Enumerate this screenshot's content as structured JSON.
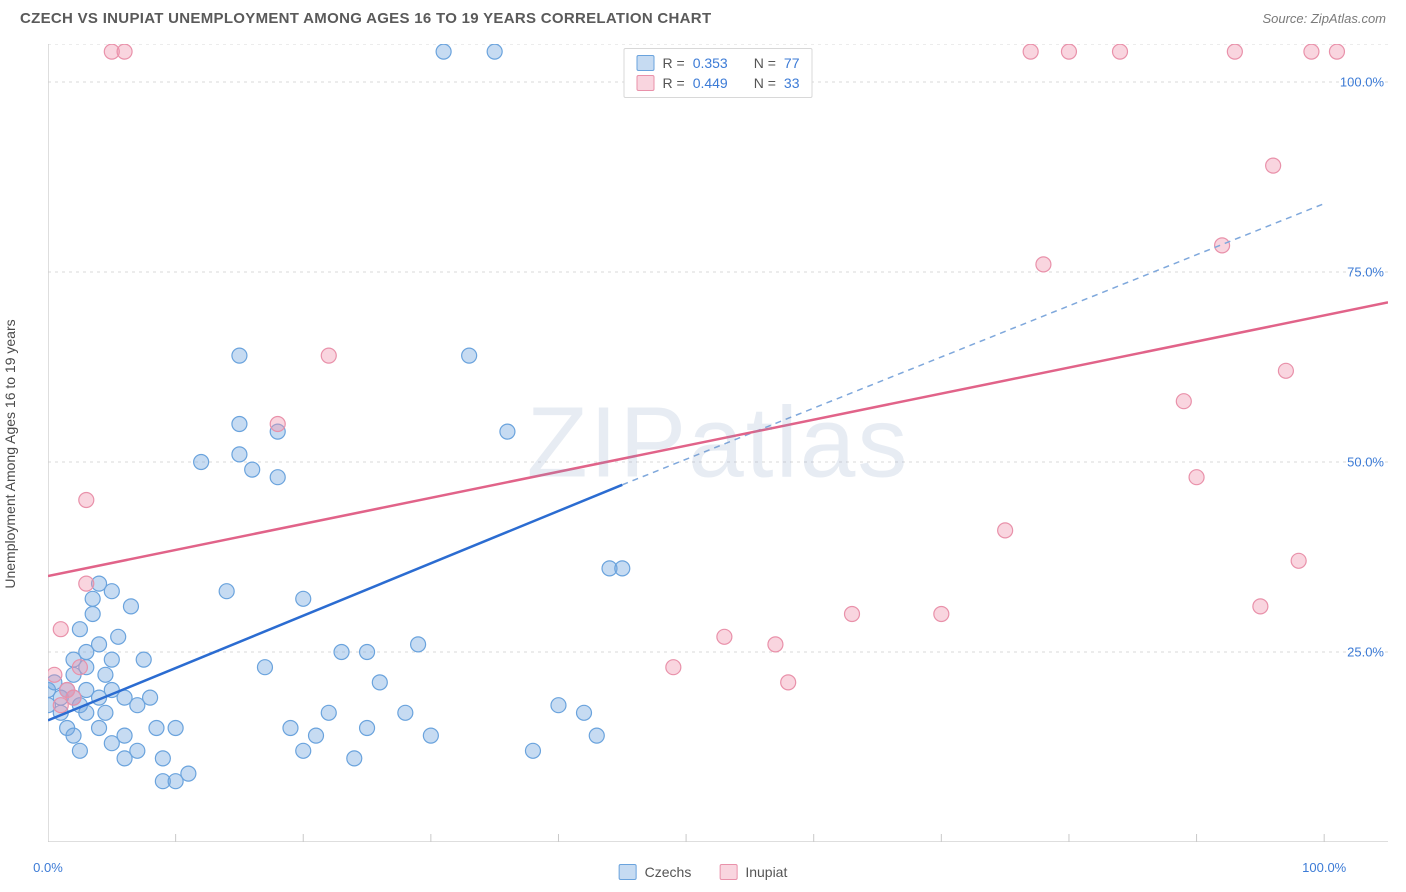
{
  "title": "CZECH VS INUPIAT UNEMPLOYMENT AMONG AGES 16 TO 19 YEARS CORRELATION CHART",
  "source_label": "Source: ZipAtlas.com",
  "yaxis_label": "Unemployment Among Ages 16 to 19 years",
  "watermark": "ZIPatlas",
  "chart": {
    "type": "scatter",
    "xlim": [
      0,
      105
    ],
    "ylim": [
      0,
      105
    ],
    "xticks": [
      0,
      10,
      20,
      30,
      40,
      50,
      60,
      70,
      80,
      90,
      100
    ],
    "xtick_labels_shown": {
      "0": "0.0%",
      "100": "100.0%"
    },
    "yticks": [
      25,
      50,
      75,
      100
    ],
    "ytick_labels": {
      "25": "25.0%",
      "50": "50.0%",
      "75": "75.0%",
      "100": "100.0%"
    },
    "grid_color": "#d9d9d9",
    "axis_color": "#c9c9c9",
    "background": "#ffffff",
    "series": {
      "czechs": {
        "label": "Czechs",
        "color_fill": "rgba(120,170,225,0.42)",
        "color_stroke": "#6aa3dd",
        "marker_r": 7.5,
        "R": "0.353",
        "N": "77",
        "trend": {
          "x1": 0,
          "y1": 16,
          "x2": 45,
          "y2": 47,
          "color": "#2b6cd1",
          "width": 2.5
        },
        "trend_ext": {
          "x1": 45,
          "y1": 47,
          "x2": 100,
          "y2": 84,
          "color": "#7fa8dc",
          "dash": "6,5",
          "width": 1.5
        },
        "points": [
          [
            0,
            18
          ],
          [
            0,
            20
          ],
          [
            0.5,
            21
          ],
          [
            1,
            19
          ],
          [
            1,
            17
          ],
          [
            1.5,
            15
          ],
          [
            1.5,
            20
          ],
          [
            2,
            19
          ],
          [
            2,
            22
          ],
          [
            2,
            24
          ],
          [
            2,
            14
          ],
          [
            2.5,
            12
          ],
          [
            2.5,
            18
          ],
          [
            3,
            20
          ],
          [
            3,
            23
          ],
          [
            3,
            25
          ],
          [
            3,
            17
          ],
          [
            3.5,
            32
          ],
          [
            3.5,
            30
          ],
          [
            4,
            26
          ],
          [
            4,
            19
          ],
          [
            4,
            15
          ],
          [
            4.5,
            17
          ],
          [
            4.5,
            22
          ],
          [
            5,
            24
          ],
          [
            5,
            20
          ],
          [
            5,
            13
          ],
          [
            5,
            33
          ],
          [
            5.5,
            27
          ],
          [
            6,
            19
          ],
          [
            6,
            14
          ],
          [
            6,
            11
          ],
          [
            6.5,
            31
          ],
          [
            7,
            18
          ],
          [
            7,
            12
          ],
          [
            7.5,
            24
          ],
          [
            8,
            19
          ],
          [
            8.5,
            15
          ],
          [
            9,
            8
          ],
          [
            9,
            11
          ],
          [
            10,
            8
          ],
          [
            10,
            15
          ],
          [
            11,
            9
          ],
          [
            12,
            50
          ],
          [
            14,
            33
          ],
          [
            15,
            51
          ],
          [
            15,
            55
          ],
          [
            15,
            64
          ],
          [
            16,
            49
          ],
          [
            17,
            23
          ],
          [
            18,
            48
          ],
          [
            18,
            54
          ],
          [
            19,
            15
          ],
          [
            20,
            12
          ],
          [
            20,
            32
          ],
          [
            21,
            14
          ],
          [
            22,
            17
          ],
          [
            23,
            25
          ],
          [
            24,
            11
          ],
          [
            25,
            15
          ],
          [
            25,
            25
          ],
          [
            26,
            21
          ],
          [
            28,
            17
          ],
          [
            29,
            26
          ],
          [
            30,
            14
          ],
          [
            31,
            104
          ],
          [
            33,
            64
          ],
          [
            35,
            104
          ],
          [
            36,
            54
          ],
          [
            38,
            12
          ],
          [
            40,
            18
          ],
          [
            42,
            17
          ],
          [
            43,
            14
          ],
          [
            44,
            36
          ],
          [
            45,
            36
          ],
          [
            2.5,
            28
          ],
          [
            4,
            34
          ]
        ]
      },
      "inupiat": {
        "label": "Inupiat",
        "color_fill": "rgba(240,150,175,0.40)",
        "color_stroke": "#e991aa",
        "marker_r": 7.5,
        "R": "0.449",
        "N": "33",
        "trend": {
          "x1": 0,
          "y1": 35,
          "x2": 105,
          "y2": 71,
          "color": "#e16389",
          "width": 2.5
        },
        "points": [
          [
            0.5,
            22
          ],
          [
            1,
            28
          ],
          [
            1,
            18
          ],
          [
            1.5,
            20
          ],
          [
            2,
            19
          ],
          [
            2.5,
            23
          ],
          [
            3,
            45
          ],
          [
            3,
            34
          ],
          [
            5,
            104
          ],
          [
            6,
            104
          ],
          [
            18,
            55
          ],
          [
            22,
            64
          ],
          [
            49,
            23
          ],
          [
            53,
            27
          ],
          [
            57,
            26
          ],
          [
            58,
            21
          ],
          [
            63,
            30
          ],
          [
            70,
            30
          ],
          [
            75,
            41
          ],
          [
            77,
            104
          ],
          [
            78,
            76
          ],
          [
            80,
            104
          ],
          [
            84,
            104
          ],
          [
            89,
            58
          ],
          [
            90,
            48
          ],
          [
            92,
            78.5
          ],
          [
            93,
            104
          ],
          [
            95,
            31
          ],
          [
            96,
            89
          ],
          [
            97,
            62
          ],
          [
            98,
            37
          ],
          [
            99,
            104
          ],
          [
            101,
            104
          ]
        ]
      }
    },
    "legend_top": [
      {
        "series": "czechs",
        "r_label": "R =",
        "n_label": "N ="
      },
      {
        "series": "inupiat",
        "r_label": "R =",
        "n_label": "N ="
      }
    ],
    "legend_bottom": [
      {
        "series": "czechs"
      },
      {
        "series": "inupiat"
      }
    ]
  }
}
